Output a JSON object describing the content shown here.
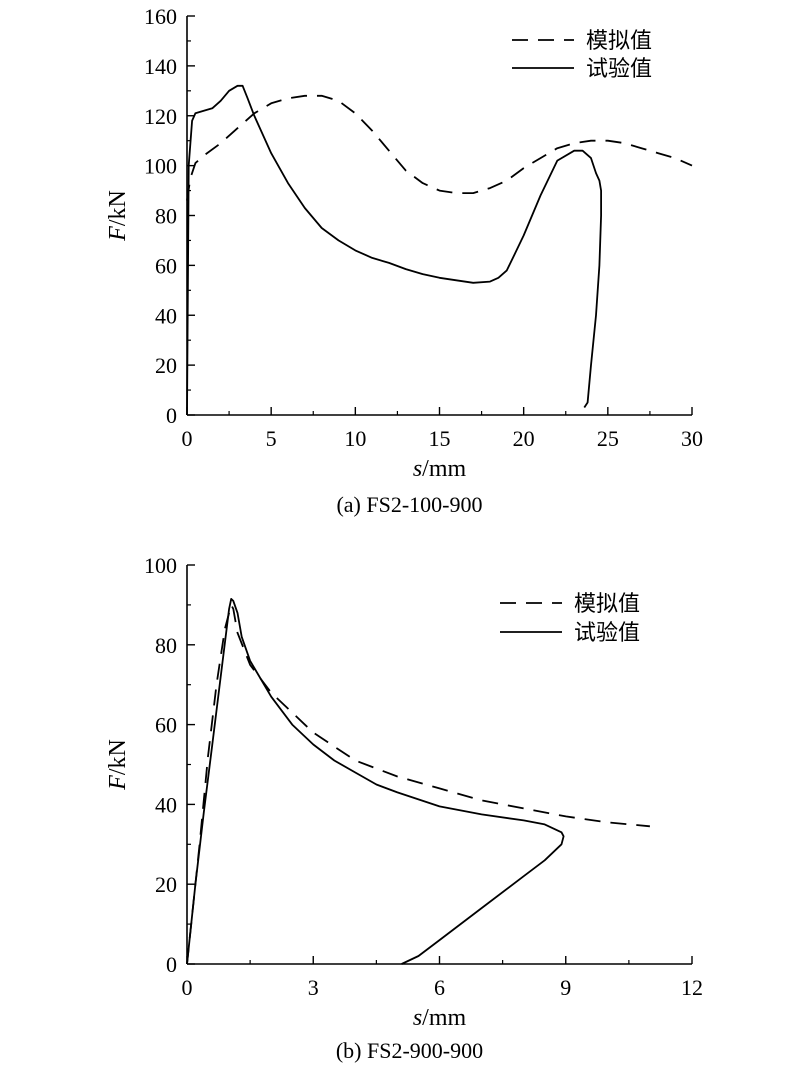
{
  "chart_data": [
    {
      "type": "line",
      "caption": "(a) FS2-100-900",
      "xlabel_var": "s",
      "xlabel_unit": "/mm",
      "ylabel_var": "F",
      "ylabel_unit": "/kN",
      "xlim": [
        0,
        30
      ],
      "ylim": [
        0,
        160
      ],
      "xticks": [
        0,
        5,
        10,
        15,
        20,
        25,
        30
      ],
      "yticks": [
        0,
        20,
        40,
        60,
        80,
        100,
        120,
        140,
        160
      ],
      "xtick_labels": [
        "0",
        "5",
        "10",
        "15",
        "20",
        "25",
        "30"
      ],
      "ytick_labels": [
        "0",
        "20",
        "40",
        "60",
        "80",
        "100",
        "120",
        "140",
        "160"
      ],
      "grid": false,
      "legend_position": "top-right",
      "series": [
        {
          "name": "模拟值",
          "style": "dashed",
          "x": [
            0,
            0.2,
            0.5,
            1,
            2,
            3,
            4,
            5,
            6,
            7,
            8,
            9,
            10,
            11,
            12,
            13,
            14,
            15,
            16,
            17,
            18,
            19,
            20,
            21,
            22,
            23,
            24,
            25,
            26,
            27,
            28,
            29,
            30
          ],
          "y": [
            86,
            95,
            101,
            104,
            109,
            115,
            121,
            125,
            127,
            128,
            128,
            126,
            121,
            114,
            106,
            98,
            93,
            90,
            89,
            89,
            91,
            94,
            99,
            103,
            107,
            109,
            110,
            110,
            109,
            107,
            105,
            103,
            100
          ]
        },
        {
          "name": "试验值",
          "style": "solid",
          "x": [
            0,
            0.1,
            0.3,
            0.5,
            1,
            1.5,
            2,
            2.5,
            3,
            3.3,
            3.6,
            4,
            5,
            6,
            7,
            8,
            9,
            10,
            11,
            12,
            13,
            14,
            15,
            16,
            17,
            18,
            18.5,
            19,
            19.5,
            20,
            21,
            22,
            23,
            23.5,
            24,
            24.3,
            24.5,
            24.6,
            24.6,
            24.5,
            24.3,
            24.0,
            23.8,
            23.6
          ],
          "y": [
            0,
            100,
            118,
            121,
            122,
            123,
            126,
            130,
            132,
            132,
            127,
            120,
            105,
            93,
            83,
            75,
            70,
            66,
            63,
            61,
            58.5,
            56.5,
            55,
            54,
            53,
            53.5,
            55,
            58,
            65,
            72,
            88,
            102,
            106,
            106,
            103,
            97,
            94,
            90,
            80,
            60,
            40,
            20,
            5,
            3
          ]
        }
      ]
    },
    {
      "type": "line",
      "caption": "(b) FS2-900-900",
      "xlabel_var": "s",
      "xlabel_unit": "/mm",
      "ylabel_var": "F",
      "ylabel_unit": "/kN",
      "xlim": [
        0,
        12
      ],
      "ylim": [
        0,
        100
      ],
      "xticks": [
        0,
        3,
        6,
        9,
        12
      ],
      "yticks": [
        0,
        20,
        40,
        60,
        80,
        100
      ],
      "xtick_labels": [
        "0",
        "3",
        "6",
        "9",
        "12"
      ],
      "ytick_labels": [
        "0",
        "20",
        "40",
        "60",
        "80",
        "100"
      ],
      "grid": false,
      "legend_position": "top-right",
      "series": [
        {
          "name": "模拟值",
          "style": "dashed",
          "x": [
            0,
            0.1,
            0.3,
            0.5,
            0.7,
            0.9,
            1.05,
            1.1,
            1.2,
            1.5,
            2,
            3,
            4,
            5,
            6,
            7,
            8,
            9,
            10,
            11
          ],
          "y": [
            0,
            10,
            30,
            52,
            70,
            84,
            90,
            89,
            83,
            75,
            68,
            58,
            51,
            47,
            44,
            41,
            39,
            37,
            35.5,
            34.5
          ]
        },
        {
          "name": "试验值",
          "style": "solid",
          "x": [
            0,
            0.1,
            0.2,
            0.4,
            0.6,
            0.8,
            1.0,
            1.05,
            1.1,
            1.2,
            1.3,
            1.5,
            2,
            2.5,
            3,
            3.5,
            4,
            4.5,
            5,
            6,
            7,
            8,
            8.5,
            8.9,
            8.95,
            8.9,
            8.5,
            8,
            7,
            6,
            5.5,
            5.1
          ],
          "y": [
            0,
            10,
            20,
            38,
            55,
            72,
            89,
            91.5,
            91,
            88,
            82,
            76,
            67,
            60,
            55,
            51,
            48,
            45,
            43,
            39.5,
            37.5,
            36,
            35,
            33,
            32,
            30,
            26,
            22,
            14,
            6,
            2,
            0
          ]
        }
      ]
    }
  ]
}
